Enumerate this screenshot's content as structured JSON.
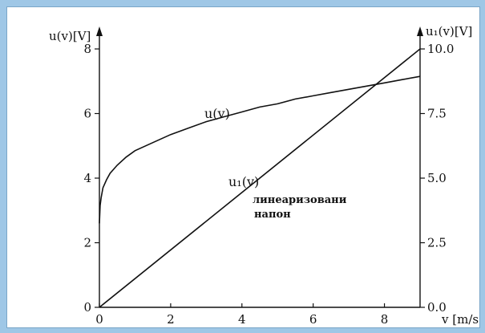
{
  "chart_data": {
    "type": "line",
    "x": {
      "label": "v [m/s]",
      "range": [
        0,
        9
      ],
      "ticks": [
        0,
        2,
        4,
        6,
        8
      ]
    },
    "y_left": {
      "label": "u(v)[V]",
      "range": [
        0,
        8
      ],
      "ticks": [
        0,
        2,
        4,
        6,
        8
      ]
    },
    "y_right": {
      "label": "u₁(v)[V]",
      "range": [
        0,
        10
      ],
      "ticks": [
        "0.0",
        "2.5",
        "5.0",
        "7.5",
        "10.0"
      ]
    },
    "series": [
      {
        "name": "u(v)",
        "axis": "left",
        "x": [
          0,
          0.02,
          0.05,
          0.1,
          0.2,
          0.3,
          0.5,
          0.75,
          1,
          1.5,
          2,
          2.5,
          3,
          3.5,
          4,
          4.5,
          5,
          5.5,
          6,
          6.5,
          7,
          7.5,
          8,
          8.5,
          9
        ],
        "y": [
          2.6,
          3.15,
          3.4,
          3.7,
          3.95,
          4.15,
          4.4,
          4.65,
          4.85,
          5.1,
          5.35,
          5.55,
          5.75,
          5.9,
          6.05,
          6.2,
          6.3,
          6.45,
          6.55,
          6.65,
          6.75,
          6.85,
          6.95,
          7.05,
          7.15
        ]
      },
      {
        "name": "u₁(v)",
        "axis": "right",
        "x": [
          0,
          9
        ],
        "y": [
          0,
          10
        ]
      }
    ],
    "annotations": {
      "curve_u": "u(v)",
      "curve_u1": "u₁(v)",
      "note_line1": "линеаризовани",
      "note_line2": "напон"
    },
    "grid": false
  }
}
